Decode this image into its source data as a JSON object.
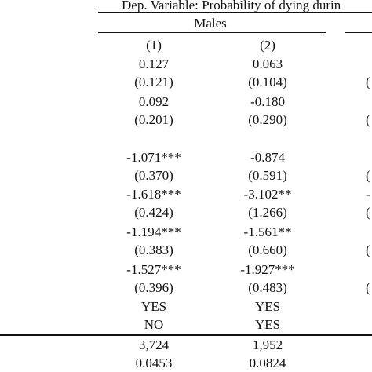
{
  "header": {
    "dep_variable": "Dep. Variable: Probability of dying durin",
    "group_males": "Males"
  },
  "columns": [
    "(1)",
    "(2)"
  ],
  "rows": [
    {
      "c1": "0.127",
      "c2": "0.063",
      "edge": ""
    },
    {
      "c1": "(0.121)",
      "c2": "(0.104)",
      "edge": "("
    },
    {
      "c1": "0.092",
      "c2": "-0.180",
      "edge": ""
    },
    {
      "c1": "(0.201)",
      "c2": "(0.290)",
      "edge": "("
    },
    {
      "c1": "-1.071***",
      "c2": "-0.874",
      "edge": ""
    },
    {
      "c1": "(0.370)",
      "c2": "(0.591)",
      "edge": "("
    },
    {
      "c1": "-1.618***",
      "c2": "-3.102**",
      "edge": "-"
    },
    {
      "c1": "(0.424)",
      "c2": "(1.266)",
      "edge": "("
    },
    {
      "c1": "-1.194***",
      "c2": "-1.561**",
      "edge": ""
    },
    {
      "c1": "(0.383)",
      "c2": "(0.660)",
      "edge": "("
    },
    {
      "c1": "-1.527***",
      "c2": "-1.927***",
      "edge": ""
    },
    {
      "c1": "(0.396)",
      "c2": "(0.483)",
      "edge": "("
    },
    {
      "c1": "YES",
      "c2": "YES",
      "edge": ""
    },
    {
      "c1": "NO",
      "c2": "YES",
      "edge": ""
    }
  ],
  "footer": [
    {
      "c1": "3,724",
      "c2": "1,952"
    },
    {
      "c1": "0.0453",
      "c2": "0.0824"
    }
  ]
}
